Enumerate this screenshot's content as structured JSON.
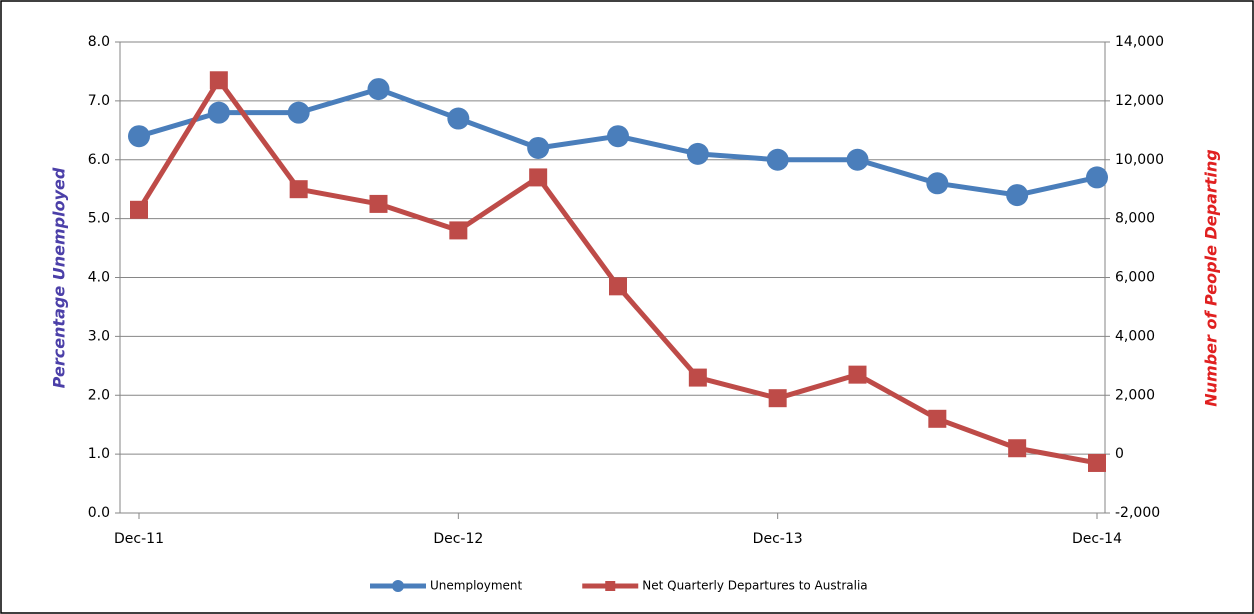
{
  "chart_data": {
    "type": "line",
    "categories": [
      "Dec-11",
      null,
      null,
      null,
      "Dec-12",
      null,
      null,
      null,
      "Dec-13",
      null,
      null,
      null,
      "Dec-14"
    ],
    "y_label": "Percentage Unemployed",
    "y2_label": "Number of People Departing",
    "series": [
      {
        "name": "Unemployment",
        "color": "#4a7ebb",
        "marker": "circle",
        "values": [
          6.4,
          6.8,
          6.8,
          7.2,
          6.7,
          6.2,
          6.4,
          6.1,
          6.0,
          6.0,
          5.6,
          5.4,
          5.7
        ]
      },
      {
        "name": "Net Quarterly Departures to Australia",
        "color": "#be4b48",
        "marker": "square",
        "axis": "y2",
        "values": [
          8300,
          12700,
          9000,
          8500,
          7600,
          9400,
          5700,
          2600,
          1900,
          2700,
          1200,
          200,
          -300
        ]
      }
    ],
    "ylim": [
      0,
      8
    ],
    "yticks": [
      {
        "value": 0,
        "label": "0.0"
      },
      {
        "value": 1,
        "label": "1.0"
      },
      {
        "value": 2,
        "label": "2.0"
      },
      {
        "value": 3,
        "label": "3.0"
      },
      {
        "value": 4,
        "label": "4.0"
      },
      {
        "value": 5,
        "label": "5.0"
      },
      {
        "value": 6,
        "label": "6.0"
      },
      {
        "value": 7,
        "label": "7.0"
      },
      {
        "value": 8,
        "label": "8.0"
      }
    ],
    "y2lim": [
      -2000,
      14000
    ],
    "y2ticks": [
      {
        "value": -2000,
        "label": "-2,000"
      },
      0,
      {
        "value": 2000,
        "label": "2,000"
      },
      {
        "value": 4000,
        "label": "4,000"
      },
      {
        "value": 6000,
        "label": "6,000"
      },
      {
        "value": 8000,
        "label": "8,000"
      },
      {
        "value": 10000,
        "label": "10,000"
      },
      {
        "value": 12000,
        "label": "12,000"
      },
      {
        "value": 14000,
        "label": "14,000"
      }
    ],
    "grid": true,
    "legend": "bottom"
  }
}
